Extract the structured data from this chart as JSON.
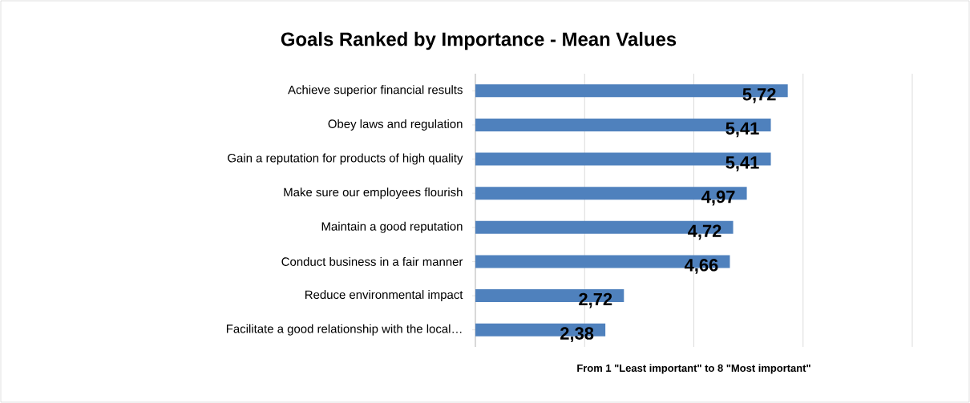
{
  "chart_data": {
    "type": "bar",
    "orientation": "horizontal",
    "title": "Goals Ranked by Importance - Mean Values",
    "xlabel": "From 1 \"Least important\" to 8 \"Most important\"",
    "categories": [
      "Achieve superior financial results",
      "Obey laws and regulation",
      "Gain a reputation for products of high quality",
      "Make sure our employees flourish",
      "Maintain a good reputation",
      "Conduct business in a fair manner",
      "Reduce environmental impact",
      "Facilitate a good relationship with the local…"
    ],
    "values": [
      5.72,
      5.41,
      5.41,
      4.97,
      4.72,
      4.66,
      2.72,
      2.38
    ],
    "value_labels": [
      "5,72",
      "5,41",
      "5,41",
      "4,97",
      "4,72",
      "4,66",
      "2,72",
      "2,38"
    ],
    "color": "#4f81bd",
    "xlim": [
      0,
      8
    ],
    "xticks": [
      {
        "value": 0,
        "label": null
      },
      {
        "value": 2,
        "label": null
      },
      {
        "value": 4,
        "label": null
      },
      {
        "value": 6,
        "label": null
      },
      {
        "value": 8,
        "label": null
      }
    ],
    "grid": "x",
    "tick_labels": "y"
  }
}
